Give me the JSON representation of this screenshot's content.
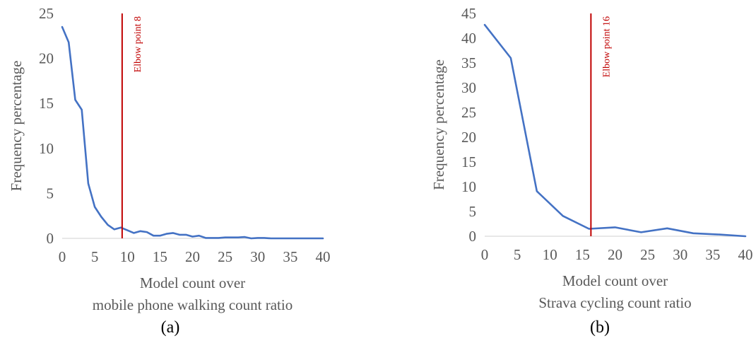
{
  "colors": {
    "series": "#4472C4",
    "marker": "#C00000",
    "axis": "#D9D9D9",
    "text": "#595959"
  },
  "chart_data": [
    {
      "type": "line",
      "caption": "(a)",
      "xlabel": [
        "Model count over",
        "mobile phone walking count ratio"
      ],
      "ylabel": "Frequency percentage",
      "xlim": [
        0,
        40
      ],
      "ylim": [
        0,
        25
      ],
      "xticks": [
        0,
        5,
        10,
        15,
        20,
        25,
        30,
        35,
        40
      ],
      "yticks": [
        0,
        5,
        10,
        15,
        20,
        25
      ],
      "grid": false,
      "series": [
        {
          "x": [
            0,
            1,
            2,
            3,
            4,
            5,
            6,
            7,
            8,
            9,
            10,
            11,
            12,
            13,
            14,
            15,
            16,
            17,
            18,
            19,
            20,
            21,
            22,
            23,
            24,
            25,
            26,
            27,
            28,
            29,
            30,
            31,
            32,
            33,
            34,
            35,
            36,
            37,
            38,
            39,
            40
          ],
          "y": [
            23.5,
            21.8,
            15.4,
            14.3,
            6.1,
            3.5,
            2.4,
            1.5,
            1.0,
            1.2,
            0.9,
            0.6,
            0.8,
            0.7,
            0.3,
            0.3,
            0.5,
            0.6,
            0.4,
            0.4,
            0.2,
            0.3,
            0.05,
            0.05,
            0.05,
            0.1,
            0.1,
            0.1,
            0.15,
            0.0,
            0.05,
            0.05,
            0.0,
            0.0,
            0.0,
            0.0,
            0.0,
            0.0,
            0.0,
            0.0,
            0.0
          ]
        }
      ],
      "annotation": {
        "label": "Elbow point 8",
        "x": 9.2
      }
    },
    {
      "type": "line",
      "caption": "(b)",
      "xlabel": [
        "Model count over",
        "Strava cycling count ratio"
      ],
      "ylabel": "Frequency percentage",
      "xlim": [
        0,
        40
      ],
      "ylim": [
        0,
        45
      ],
      "xticks": [
        0,
        5,
        10,
        15,
        20,
        25,
        30,
        35,
        40
      ],
      "yticks": [
        0,
        5,
        10,
        15,
        20,
        25,
        30,
        35,
        40,
        45
      ],
      "grid": false,
      "series": [
        {
          "x": [
            0,
            4,
            8,
            12,
            16,
            20,
            24,
            28,
            32,
            36,
            40
          ],
          "y": [
            42.7,
            36.0,
            9.1,
            4.1,
            1.5,
            1.8,
            0.8,
            1.6,
            0.6,
            0.35,
            0.0
          ]
        }
      ],
      "annotation": {
        "label": "Elbow point 16",
        "x": 16.3
      }
    }
  ]
}
